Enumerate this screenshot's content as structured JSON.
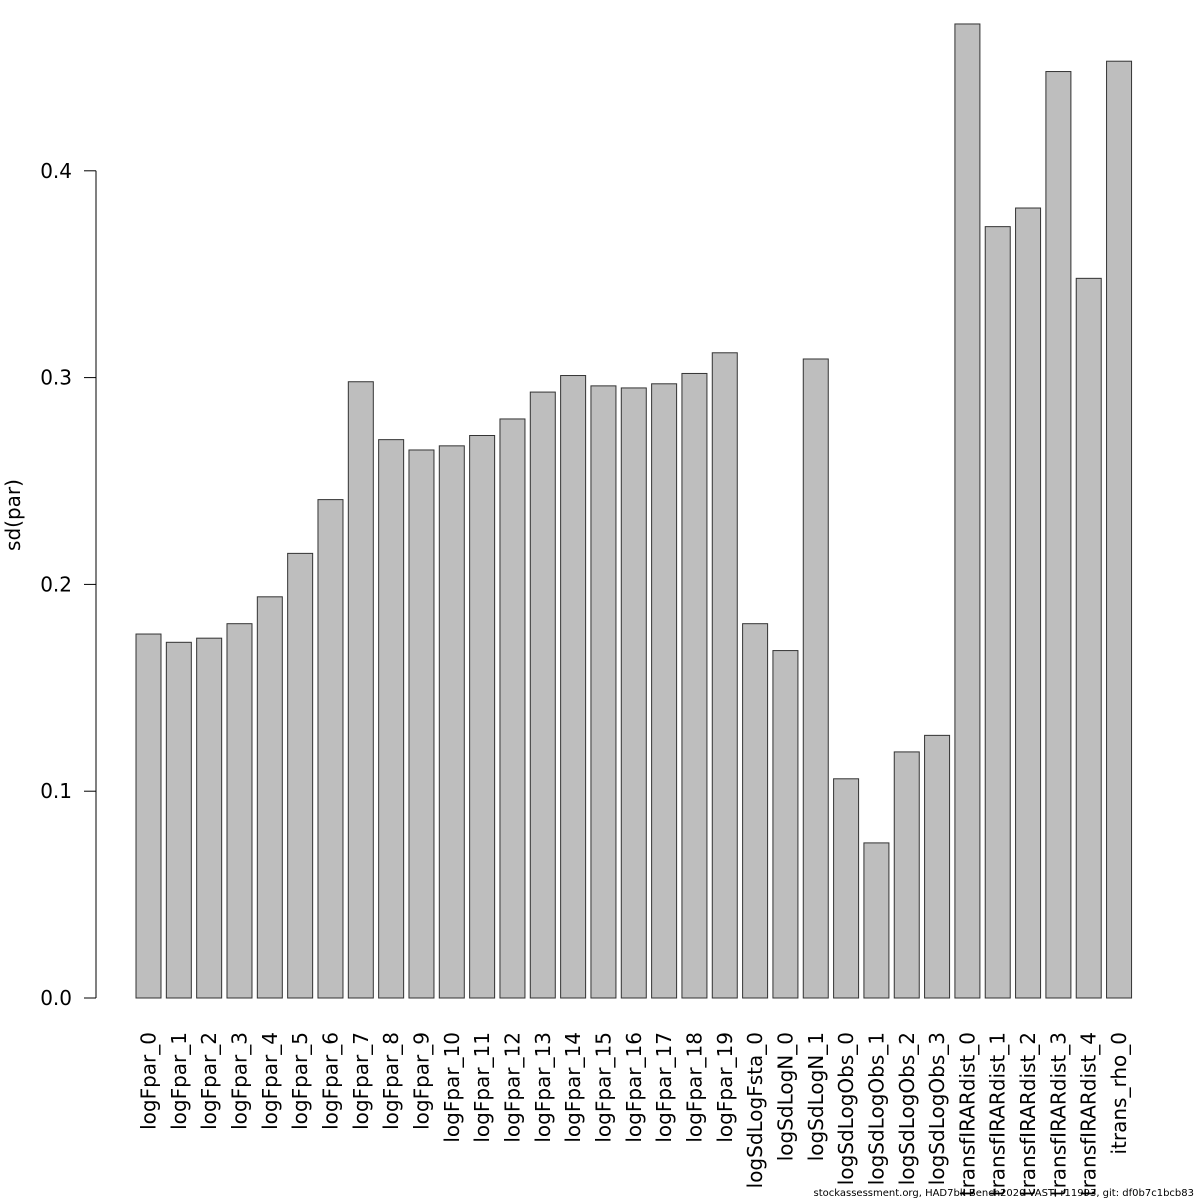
{
  "chart_data": {
    "type": "bar",
    "title": "",
    "xlabel": "",
    "ylabel": "sd(par)",
    "ylim": [
      0,
      0.48
    ],
    "yticks": [
      "0.0",
      "0.1",
      "0.2",
      "0.3",
      "0.4"
    ],
    "ytick_values": [
      0.0,
      0.1,
      0.2,
      0.3,
      0.4
    ],
    "grid": false,
    "bar_color": "#bebebe",
    "bar_border_color": "#333333",
    "categories": [
      "logFpar_0",
      "logFpar_1",
      "logFpar_2",
      "logFpar_3",
      "logFpar_4",
      "logFpar_5",
      "logFpar_6",
      "logFpar_7",
      "logFpar_8",
      "logFpar_9",
      "logFpar_10",
      "logFpar_11",
      "logFpar_12",
      "logFpar_13",
      "logFpar_14",
      "logFpar_15",
      "logFpar_16",
      "logFpar_17",
      "logFpar_18",
      "logFpar_19",
      "logSdLogFsta_0",
      "logSdLogN_0",
      "logSdLogN_1",
      "logSdLogObs_0",
      "logSdLogObs_1",
      "logSdLogObs_2",
      "logSdLogObs_3",
      "transfIRARdist_0",
      "transfIRARdist_1",
      "transfIRARdist_2",
      "transfIRARdist_3",
      "transfIRARdist_4",
      "itrans_rho_0"
    ],
    "values": [
      0.176,
      0.172,
      0.174,
      0.181,
      0.194,
      0.215,
      0.241,
      0.298,
      0.27,
      0.265,
      0.267,
      0.272,
      0.28,
      0.293,
      0.301,
      0.296,
      0.295,
      0.297,
      0.302,
      0.312,
      0.181,
      0.168,
      0.309,
      0.106,
      0.075,
      0.119,
      0.127,
      0.471,
      0.373,
      0.382,
      0.448,
      0.348,
      0.453
    ]
  },
  "footer": "stockassessment.org, HAD7bk-Bench2020-VAST, r11993, git: df0b7c1bcb83"
}
